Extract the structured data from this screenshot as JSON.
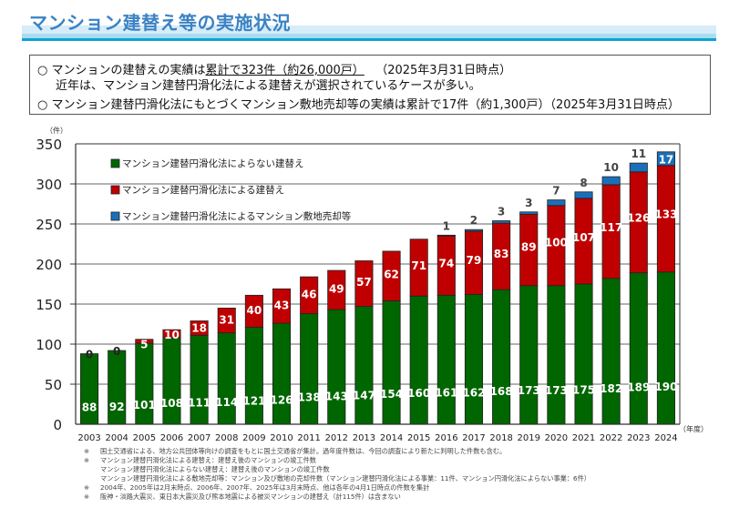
{
  "page": {
    "title": "マンション建替え等の実施状況"
  },
  "summary": {
    "bullet": "○",
    "line1_prefix": "マンションの建替えの実績は",
    "line1_underlined": "累計で323件（約26,000戸）",
    "line1_suffix": "（2025年3月31日時点）",
    "line2": "近年は、マンション建替円滑化法による建替えが選択されているケースが多い。",
    "line3": "マンション建替円滑化法にもとづくマンション敷地売却等の実績は累計で17件（約1,300戸）（2025年3月31日時点）"
  },
  "chart_data": {
    "type": "bar",
    "stacked": true,
    "title": "",
    "ylabel": "（件）",
    "xlabel": "（年度）",
    "ylim": [
      0,
      350
    ],
    "yticks": [
      0,
      50,
      100,
      150,
      200,
      250,
      300,
      350
    ],
    "grid": true,
    "legend_position": "top-left",
    "categories": [
      "2003",
      "2004",
      "2005",
      "2006",
      "2007",
      "2008",
      "2009",
      "2010",
      "2011",
      "2012",
      "2013",
      "2014",
      "2015",
      "2016",
      "2017",
      "2018",
      "2019",
      "2020",
      "2021",
      "2022",
      "2023",
      "2024"
    ],
    "series": [
      {
        "name": "マンション建替円滑化法によらない建替え",
        "color": "#006600",
        "values": [
          88,
          92,
          101,
          108,
          111,
          114,
          121,
          126,
          138,
          143,
          147,
          154,
          160,
          161,
          162,
          168,
          173,
          173,
          175,
          182,
          189,
          190
        ]
      },
      {
        "name": "マンション建替円滑化法による建替え",
        "color": "#c00000",
        "values": [
          0,
          0,
          5,
          10,
          18,
          31,
          40,
          43,
          46,
          49,
          57,
          62,
          71,
          74,
          79,
          83,
          89,
          100,
          107,
          117,
          126,
          133
        ]
      },
      {
        "name": "マンション建替円滑化法によるマンション敷地売却等",
        "color": "#1a6fb8",
        "values": [
          null,
          null,
          null,
          null,
          null,
          null,
          null,
          null,
          null,
          null,
          null,
          null,
          null,
          1,
          2,
          3,
          3,
          7,
          8,
          10,
          11,
          17
        ]
      }
    ]
  },
  "notes": [
    {
      "mark": "※",
      "text": "国土交通省による、地方公共団体等向けの調査をもとに国土交通省が集計。過年度件数は、今回の調査により新たに判明した件数も含む。"
    },
    {
      "mark": "※",
      "text": "マンション建替円滑化法による建替え：建替え後のマンションの竣工件数"
    },
    {
      "mark": "",
      "text": "マンション建替円滑化法によらない建替え：建替え後のマンションの竣工件数"
    },
    {
      "mark": "",
      "text": "マンション建替円滑化法による敷地売却等：マンション及び敷地の売却件数（マンション建替円滑化法による事業：11件、マンション円滑化法によらない事業：6件）"
    },
    {
      "mark": "※",
      "text": "2004年、2005年は2月末時点、2006年、2007年、2025年は3月末時点、他は各年の4月1日時点の件数を集計"
    },
    {
      "mark": "※",
      "text": "阪神・淡路大震災、東日本大震災及び熊本地震による被災マンションの建替え（計115件）は含まない"
    }
  ]
}
